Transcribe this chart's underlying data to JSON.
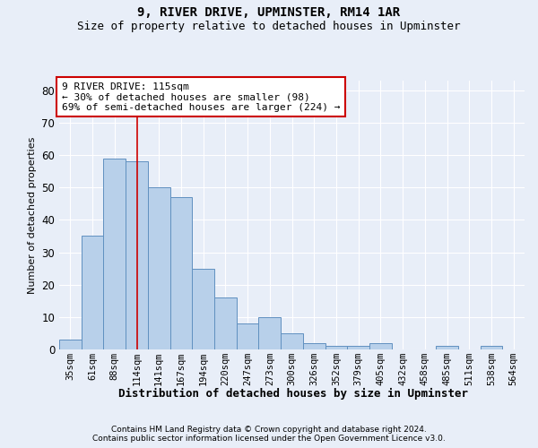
{
  "title": "9, RIVER DRIVE, UPMINSTER, RM14 1AR",
  "subtitle": "Size of property relative to detached houses in Upminster",
  "xlabel": "Distribution of detached houses by size in Upminster",
  "ylabel": "Number of detached properties",
  "categories": [
    "35sqm",
    "61sqm",
    "88sqm",
    "114sqm",
    "141sqm",
    "167sqm",
    "194sqm",
    "220sqm",
    "247sqm",
    "273sqm",
    "300sqm",
    "326sqm",
    "352sqm",
    "379sqm",
    "405sqm",
    "432sqm",
    "458sqm",
    "485sqm",
    "511sqm",
    "538sqm",
    "564sqm"
  ],
  "values": [
    3,
    35,
    59,
    58,
    50,
    47,
    25,
    16,
    8,
    10,
    5,
    2,
    1,
    1,
    2,
    0,
    0,
    1,
    0,
    1,
    0
  ],
  "bar_color": "#b8d0ea",
  "bar_edge_color": "#6090c0",
  "property_line_x": 3.0,
  "annotation_line1": "9 RIVER DRIVE: 115sqm",
  "annotation_line2": "← 30% of detached houses are smaller (98)",
  "annotation_line3": "69% of semi-detached houses are larger (224) →",
  "annotation_box_facecolor": "#ffffff",
  "annotation_box_edgecolor": "#cc0000",
  "ylim_min": 0,
  "ylim_max": 83,
  "yticks": [
    0,
    10,
    20,
    30,
    40,
    50,
    60,
    70,
    80
  ],
  "footer1": "Contains HM Land Registry data © Crown copyright and database right 2024.",
  "footer2": "Contains public sector information licensed under the Open Government Licence v3.0.",
  "background_color": "#e8eef8",
  "grid_color": "#ffffff",
  "title_fontsize": 10,
  "subtitle_fontsize": 9,
  "ylabel_fontsize": 8,
  "xlabel_fontsize": 9,
  "tick_fontsize": 7.5,
  "annotation_fontsize": 8,
  "footer_fontsize": 6.5
}
